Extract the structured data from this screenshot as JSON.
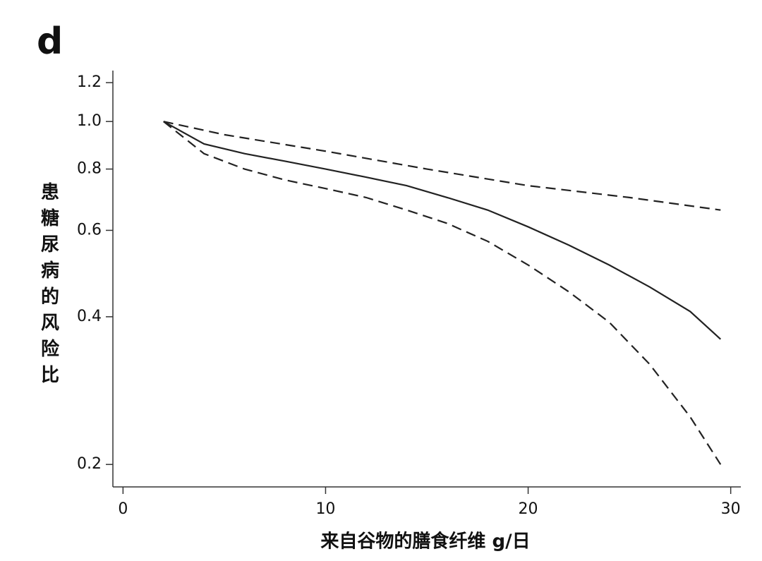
{
  "chart_data": {
    "type": "line",
    "panel_label": "d",
    "ylabel": "患糖尿病的风险比",
    "xlabel": "来自谷物的膳食纤维 g/日",
    "yscale": "log",
    "xlim": [
      -0.5,
      30.5
    ],
    "ylim": [
      0.18,
      1.27
    ],
    "xticks": [
      0,
      10,
      20,
      30
    ],
    "yticks": [
      0.2,
      0.4,
      0.6,
      0.8,
      {
        "value": 1,
        "label": "1.0"
      },
      1.2
    ],
    "series": [
      {
        "color": "#222222",
        "style": "solid",
        "x": [
          2,
          4,
          6,
          8,
          10,
          12,
          14,
          16,
          18,
          20,
          22,
          24,
          26,
          28,
          29.5
        ],
        "values": [
          1.0,
          0.9,
          0.86,
          0.83,
          0.8,
          0.77,
          0.74,
          0.7,
          0.66,
          0.61,
          0.56,
          0.51,
          0.46,
          0.41,
          0.36
        ]
      },
      {
        "color": "#222222",
        "style": "dashed",
        "x": [
          2,
          5,
          10,
          15,
          20,
          25,
          29.5
        ],
        "values": [
          1.0,
          0.94,
          0.87,
          0.8,
          0.74,
          0.7,
          0.66
        ]
      },
      {
        "color": "#222222",
        "style": "dashed",
        "x": [
          2,
          4,
          6,
          8,
          10,
          12,
          14,
          16,
          18,
          20,
          22,
          24,
          26,
          28,
          29.5
        ],
        "values": [
          1.0,
          0.86,
          0.8,
          0.76,
          0.73,
          0.7,
          0.66,
          0.62,
          0.57,
          0.51,
          0.45,
          0.39,
          0.32,
          0.25,
          0.2
        ]
      }
    ]
  }
}
